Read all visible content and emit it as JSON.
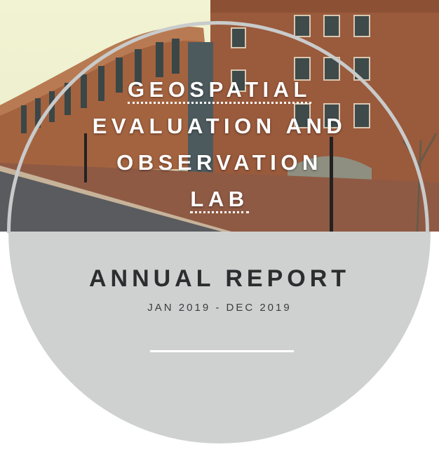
{
  "cover": {
    "title_lines": [
      "GEOSPATIAL",
      "EVALUATION AND",
      "OBSERVATION",
      "LAB"
    ],
    "report_title": "ANNUAL REPORT",
    "report_dates": "JAN 2019 - DEC 2019"
  },
  "colors": {
    "title_text": "#ffffff",
    "report_text": "#2b2d2e",
    "disc_fill": "#cfd1d1",
    "brick": "#9a5a3c"
  }
}
